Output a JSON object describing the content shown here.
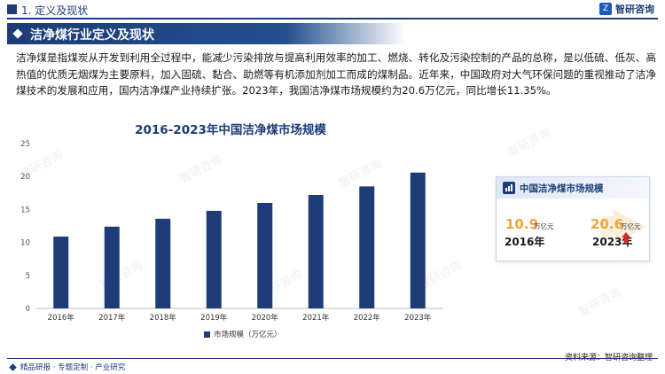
{
  "header": {
    "section_number_title": "1. 定义及现状",
    "brand_name": "智研咨询",
    "brand_logo_glyph": "Z"
  },
  "banner": {
    "title": "洁净煤行业定义及现状"
  },
  "intro": {
    "paragraph": "洁净煤是指煤炭从开发到利用全过程中，能减少污染排放与提高利用效率的加工、燃烧、转化及污染控制的产品的总称，是以低硫、低灰、高热值的优质无烟煤为主要原料，加入固硫、黏合、助燃等有机添加剂加工而成的煤制品。近年来，中国政府对大气环保问题的重视推动了洁净煤技术的发展和应用，国内洁净煤产业持续扩张。2023年，我国洁净煤市场规模约为20.6万亿元，同比增长11.35%。"
  },
  "chart_data": {
    "type": "bar",
    "title": "2016-2023年中国洁净煤市场规模",
    "categories": [
      "2016年",
      "2017年",
      "2018年",
      "2019年",
      "2020年",
      "2021年",
      "2022年",
      "2023年"
    ],
    "series": [
      {
        "name": "市场规模（万亿元）",
        "values": [
          10.9,
          12.4,
          13.6,
          14.8,
          16.0,
          17.2,
          18.5,
          20.6
        ]
      }
    ],
    "xlabel": "",
    "ylabel": "",
    "ylim": [
      0,
      25
    ],
    "yticks": [
      0,
      5,
      10,
      15,
      20,
      25
    ],
    "grid": false,
    "legend_placement": "bottom",
    "bar_color": "#1d3c78"
  },
  "card": {
    "title": "中国洁净煤市场规模",
    "start_value": "10.9",
    "start_unit": "万亿元",
    "start_year": "2016年",
    "end_value": "20.6",
    "end_unit": "万亿元",
    "end_year": "2023年"
  },
  "footer": {
    "left_text": "精品研报 · 专题定制 · 产业研究",
    "source": "资料来源：智研咨询整理"
  },
  "watermark": {
    "text": "智研咨询"
  },
  "colors": {
    "primary": "#1d3c78",
    "accent_orange": "#f1a53a",
    "up_arrow": "#d62a2a"
  }
}
